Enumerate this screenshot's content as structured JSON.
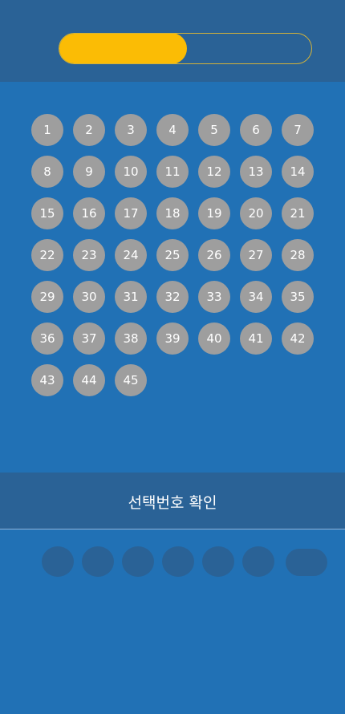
{
  "progress": {
    "value": 0.51,
    "fill_color": "#fbbc05",
    "track_border_color": "#d2b23a"
  },
  "numbers": [
    "1",
    "2",
    "3",
    "4",
    "5",
    "6",
    "7",
    "8",
    "9",
    "10",
    "11",
    "12",
    "13",
    "14",
    "15",
    "16",
    "17",
    "18",
    "19",
    "20",
    "21",
    "22",
    "23",
    "24",
    "25",
    "26",
    "27",
    "28",
    "29",
    "30",
    "31",
    "32",
    "33",
    "34",
    "35",
    "36",
    "37",
    "38",
    "39",
    "40",
    "41",
    "42",
    "43",
    "44",
    "45"
  ],
  "confirm_label": "선택번호 확인",
  "selected_slots": 6,
  "colors": {
    "background": "#2171b5",
    "header": "#2a6296",
    "ball": "#9e9e9e",
    "ball_text": "#ffffff"
  }
}
